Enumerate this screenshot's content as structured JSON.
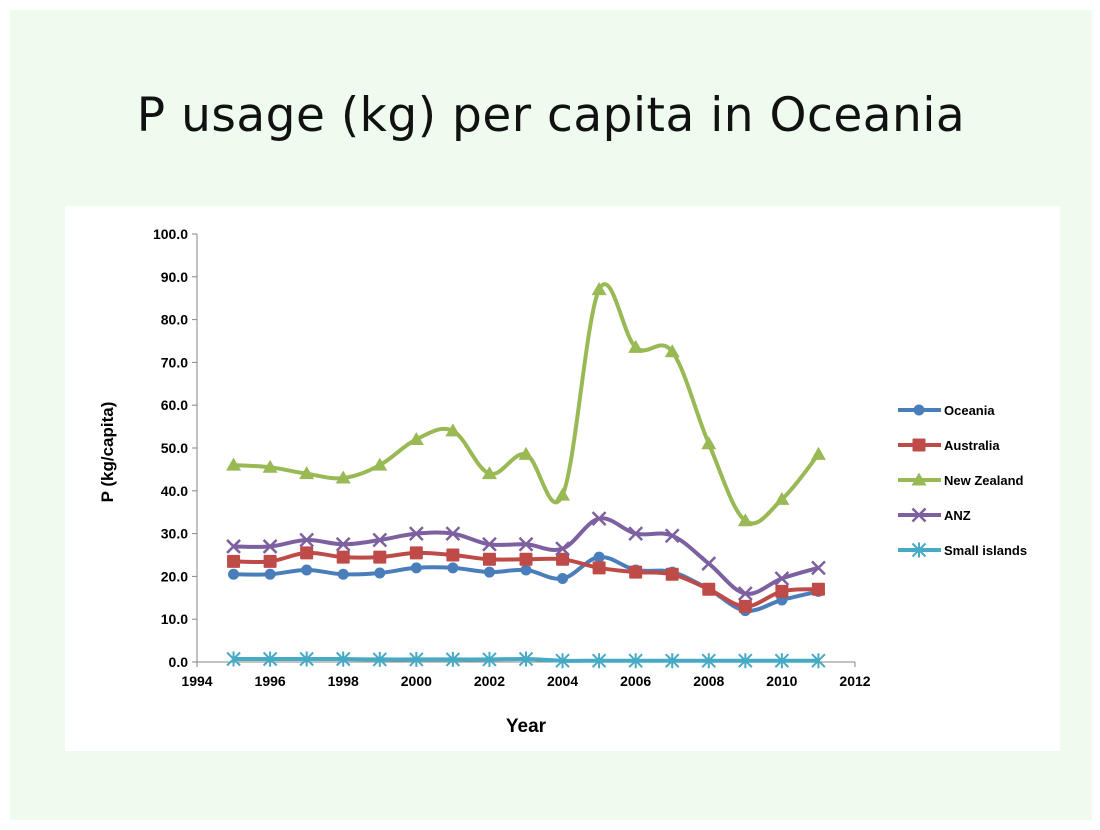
{
  "slide": {
    "title": "P usage (kg) per capita in Oceania"
  },
  "chart_data": {
    "type": "line",
    "title": "",
    "xlabel": "Year",
    "ylabel": "P (kg/capita)",
    "xlim": [
      1994,
      2012
    ],
    "ylim": [
      0,
      100
    ],
    "x_ticks": [
      "1994",
      "1996",
      "1998",
      "2000",
      "2002",
      "2004",
      "2006",
      "2008",
      "2010",
      "2012"
    ],
    "y_ticks": [
      "0.0",
      "10.0",
      "20.0",
      "30.0",
      "40.0",
      "50.0",
      "60.0",
      "70.0",
      "80.0",
      "90.0",
      "100.0"
    ],
    "legend_position": "right",
    "x": [
      1995,
      1996,
      1997,
      1998,
      1999,
      2000,
      2001,
      2002,
      2003,
      2004,
      2005,
      2006,
      2007,
      2008,
      2009,
      2010,
      2011
    ],
    "series": [
      {
        "name": "Oceania",
        "color": "#4a7ebb",
        "marker": "diamond",
        "values": [
          20.5,
          20.5,
          21.5,
          20.5,
          20.8,
          22.0,
          22.0,
          21.0,
          21.5,
          19.5,
          24.5,
          21.5,
          21.0,
          17.0,
          12.0,
          14.5,
          16.5
        ]
      },
      {
        "name": "Australia",
        "color": "#be4b48",
        "marker": "square",
        "values": [
          23.5,
          23.5,
          25.5,
          24.5,
          24.5,
          25.5,
          25.0,
          24.0,
          24.0,
          24.0,
          22.0,
          21.0,
          20.5,
          17.0,
          13.0,
          16.5,
          17.0
        ]
      },
      {
        "name": "New Zealand",
        "color": "#98b954",
        "marker": "triangle",
        "values": [
          46.0,
          45.5,
          44.0,
          43.0,
          46.0,
          52.0,
          54.0,
          44.0,
          48.5,
          39.0,
          87.0,
          73.5,
          72.5,
          51.0,
          33.0,
          38.0,
          48.5
        ]
      },
      {
        "name": "ANZ",
        "color": "#7d60a0",
        "marker": "x",
        "values": [
          27.0,
          27.0,
          28.5,
          27.5,
          28.5,
          30.0,
          30.0,
          27.5,
          27.5,
          26.5,
          33.5,
          30.0,
          29.5,
          23.0,
          16.0,
          19.5,
          22.0
        ]
      },
      {
        "name": "Small islands",
        "color": "#46aac5",
        "marker": "asterisk",
        "values": [
          0.7,
          0.7,
          0.7,
          0.7,
          0.6,
          0.6,
          0.6,
          0.6,
          0.7,
          0.3,
          0.3,
          0.3,
          0.3,
          0.3,
          0.3,
          0.3,
          0.3
        ]
      }
    ]
  }
}
